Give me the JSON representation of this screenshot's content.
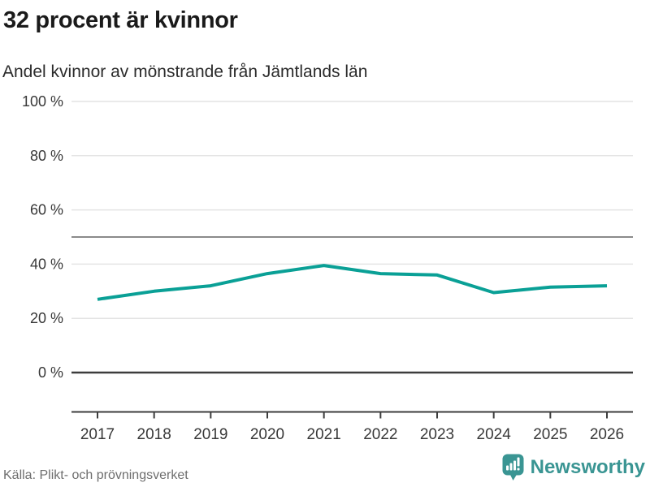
{
  "header": {
    "title": "32 procent är kvinnor",
    "subtitle": "Andel kvinnor av mönstrande från Jämtlands län"
  },
  "chart_data": {
    "type": "line",
    "title": "32 procent är kvinnor",
    "subtitle": "Andel kvinnor av mönstrande från Jämtlands län",
    "x": [
      2017,
      2018,
      2019,
      2020,
      2021,
      2022,
      2023,
      2024,
      2025,
      2026
    ],
    "series": [
      {
        "name": "Andel kvinnor av mönstrande",
        "values": [
          27,
          30,
          32,
          36.5,
          39.5,
          36.5,
          36,
          29.5,
          31.5,
          32
        ]
      }
    ],
    "xlabel": "",
    "ylabel": "",
    "ylim": [
      0,
      100
    ],
    "yticks": [
      0,
      20,
      40,
      60,
      80,
      100
    ],
    "ytick_suffix": " %",
    "reference_line_y": 50,
    "grid": "horizontal",
    "legend_position": "none"
  },
  "footer": {
    "source": "Källa: Plikt- och prövningsverket",
    "logo_text": "Newsworthy",
    "logo_icon": "bar-chart-speech-bubble-icon"
  },
  "colors": {
    "line_teal": "#0aa096",
    "brand_teal": "#3a9593",
    "grid_light": "#e4e4e4",
    "reference_gray": "#8a8a8a",
    "axis_dark": "#3d3d3d",
    "tick_label": "#383838",
    "title_dark": "#1a1a1a",
    "source_gray": "#6e6e6e"
  }
}
